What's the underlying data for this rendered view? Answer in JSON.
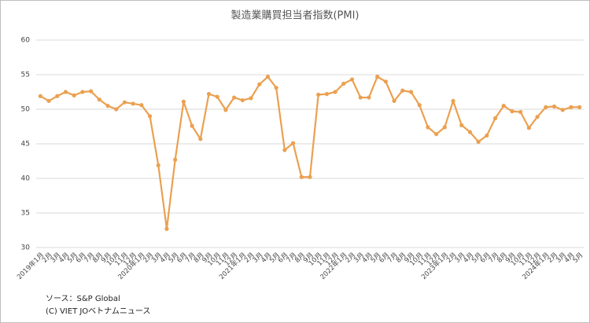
{
  "chart_data": {
    "type": "line",
    "title": "製造業購買担当者指数(PMI)",
    "categories": [
      "2019年1月",
      "2月",
      "3月",
      "4月",
      "5月",
      "6月",
      "7月",
      "8月",
      "9月",
      "10月",
      "11月",
      "12月",
      "2020年1月",
      "2月",
      "3月",
      "4月",
      "5月",
      "6月",
      "7月",
      "8月",
      "9月",
      "10月",
      "11月",
      "12月",
      "2021年1月",
      "2月",
      "3月",
      "4月",
      "5月",
      "6月",
      "7月",
      "8月",
      "9月",
      "10月",
      "11月",
      "12月",
      "2022年1月",
      "2月",
      "3月",
      "4月",
      "5月",
      "6月",
      "7月",
      "8月",
      "9月",
      "10月",
      "11月",
      "12月",
      "2023年1月",
      "2月",
      "3月",
      "4月",
      "5月",
      "6月",
      "7月",
      "8月",
      "9月",
      "10月",
      "11月",
      "12月",
      "2024年1月",
      "2月",
      "3月",
      "4月",
      "5月"
    ],
    "series": [
      {
        "name": "PMI",
        "color": "#eba050",
        "values": [
          51.9,
          51.2,
          51.9,
          52.5,
          52.0,
          52.5,
          52.6,
          51.4,
          50.5,
          50.0,
          51.0,
          50.8,
          50.6,
          49.0,
          41.9,
          32.7,
          42.7,
          51.1,
          47.6,
          45.7,
          52.2,
          51.8,
          49.9,
          51.7,
          51.3,
          51.6,
          53.6,
          54.7,
          53.1,
          44.1,
          45.1,
          40.2,
          40.2,
          52.1,
          52.2,
          52.5,
          53.7,
          54.3,
          51.7,
          51.7,
          54.7,
          54.0,
          51.2,
          52.7,
          52.5,
          50.6,
          47.4,
          46.4,
          47.4,
          51.2,
          47.7,
          46.7,
          45.3,
          46.2,
          48.7,
          50.5,
          49.7,
          49.6,
          47.3,
          48.9,
          50.3,
          50.4,
          49.9,
          50.3,
          50.3
        ]
      }
    ],
    "ylim": [
      30,
      60
    ],
    "yticks": [
      30,
      35,
      40,
      45,
      50,
      55,
      60
    ],
    "grid": true,
    "source": "ソース：S&P Global",
    "copyright": "(C) VIET JOベトナムニュース"
  }
}
